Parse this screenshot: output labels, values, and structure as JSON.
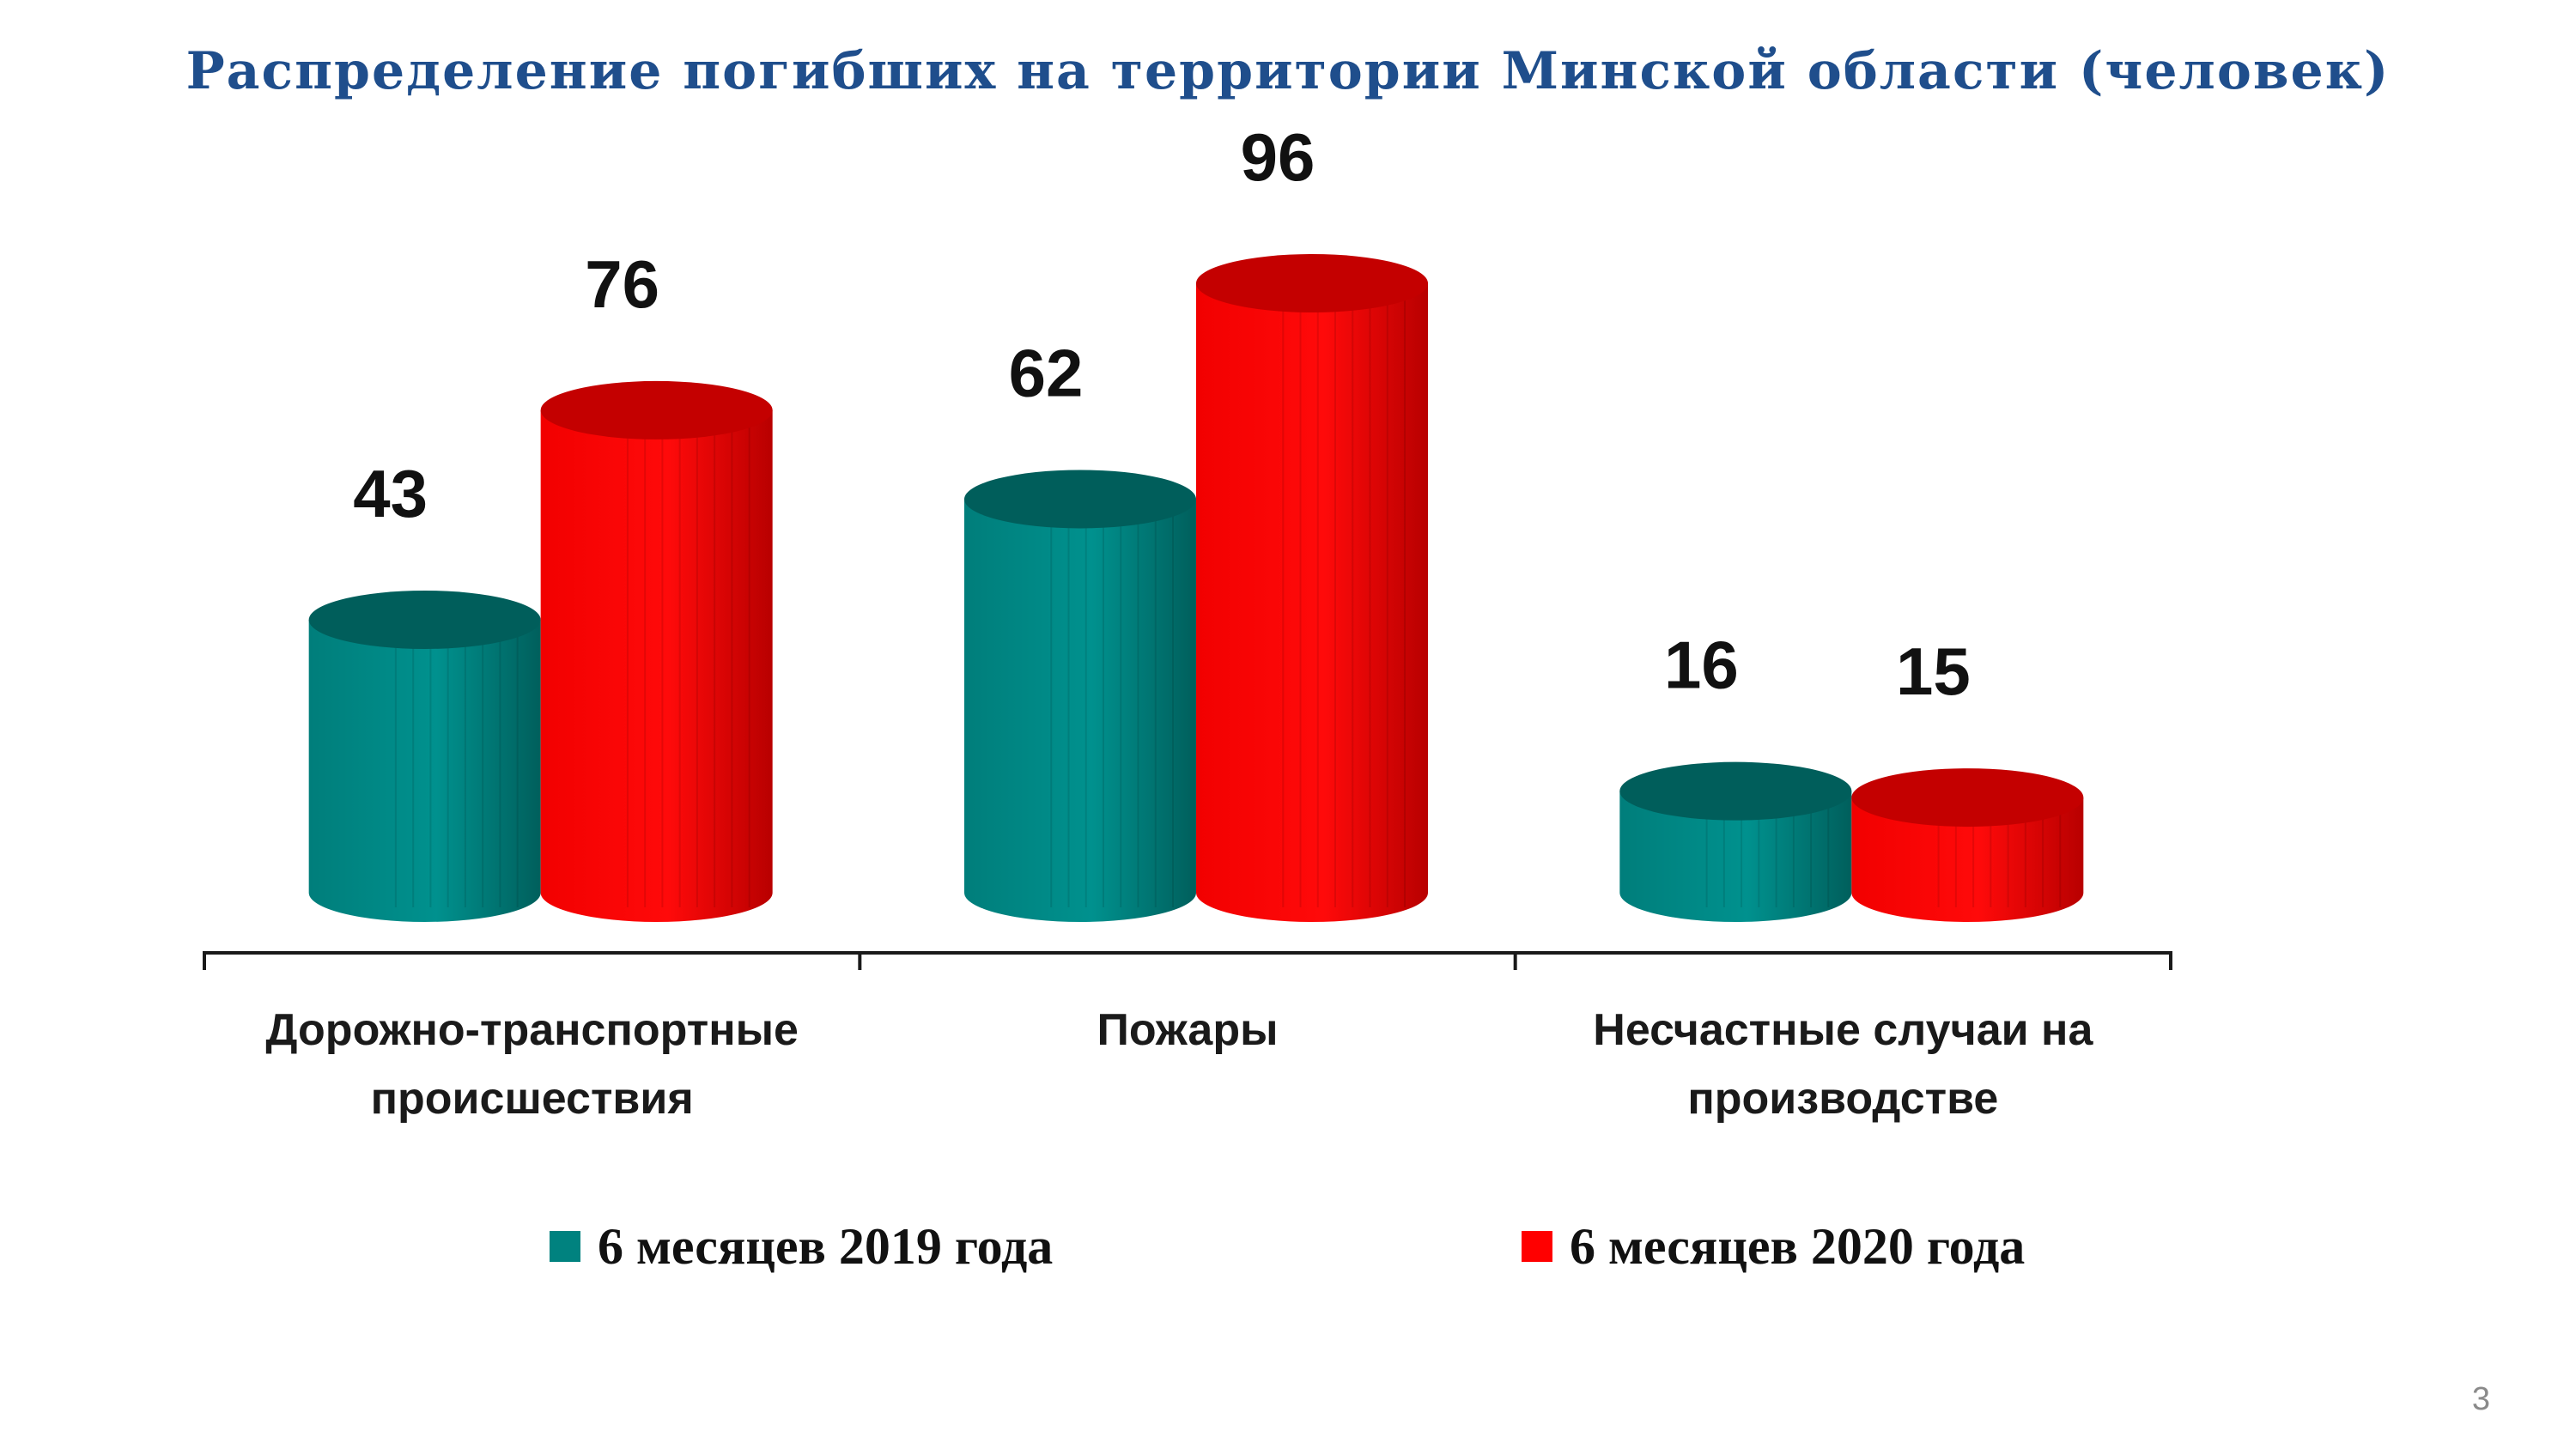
{
  "slide": {
    "title": "Распределение погибших на территории Минской области (человек)",
    "page_number": "3"
  },
  "chart_data": {
    "type": "bar",
    "style": "3d-cylinder",
    "title": "Распределение погибших на территории Минской области (человек)",
    "categories": [
      "Дорожно-транспортные происшествия",
      "Пожары",
      "Несчастные случаи на производстве"
    ],
    "series": [
      {
        "name": "6 месяцев 2019 года",
        "color": "#00827F",
        "values": [
          43,
          62,
          16
        ]
      },
      {
        "name": "6 месяцев 2020 года",
        "color": "#FF0000",
        "values": [
          76,
          96,
          15
        ]
      }
    ],
    "ylim": [
      0,
      96
    ],
    "grid": false,
    "legend_position": "bottom",
    "data_labels": true
  },
  "legend": {
    "items": [
      {
        "label": "6 месяцев 2019 года",
        "color": "#00827F"
      },
      {
        "label": "6 месяцев 2020 года",
        "color": "#FF0000"
      }
    ]
  }
}
